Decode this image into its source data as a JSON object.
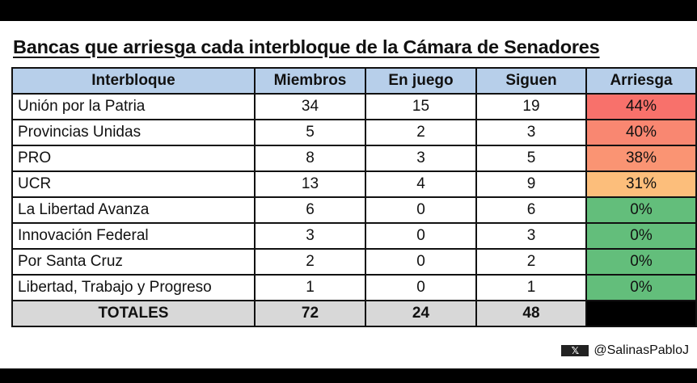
{
  "title": "Bancas que arriesga cada interbloque de la Cámara de Senadores",
  "headers": [
    "Interbloque",
    "Miembros",
    "En juego",
    "Siguen",
    "Arriesga"
  ],
  "rows": [
    {
      "name": "Unión por la Patria",
      "miembros": "34",
      "en_juego": "15",
      "siguen": "19",
      "arriesga": "44%",
      "color": "#f8716b"
    },
    {
      "name": "Provincias Unidas",
      "miembros": "5",
      "en_juego": "2",
      "siguen": "3",
      "arriesga": "40%",
      "color": "#f98771"
    },
    {
      "name": "PRO",
      "miembros": "8",
      "en_juego": "3",
      "siguen": "5",
      "arriesga": "38%",
      "color": "#fa9473"
    },
    {
      "name": "UCR",
      "miembros": "13",
      "en_juego": "4",
      "siguen": "9",
      "arriesga": "31%",
      "color": "#fcbe7b"
    },
    {
      "name": "La Libertad Avanza",
      "miembros": "6",
      "en_juego": "0",
      "siguen": "6",
      "arriesga": "0%",
      "color": "#63be7b"
    },
    {
      "name": "Innovación Federal",
      "miembros": "3",
      "en_juego": "0",
      "siguen": "3",
      "arriesga": "0%",
      "color": "#63be7b"
    },
    {
      "name": "Por Santa Cruz",
      "miembros": "2",
      "en_juego": "0",
      "siguen": "2",
      "arriesga": "0%",
      "color": "#63be7b"
    },
    {
      "name": "Libertad, Trabajo y Progreso",
      "miembros": "1",
      "en_juego": "0",
      "siguen": "1",
      "arriesga": "0%",
      "color": "#63be7b"
    }
  ],
  "totals": {
    "label": "TOTALES",
    "miembros": "72",
    "en_juego": "24",
    "siguen": "48"
  },
  "credit": {
    "icon": "x-logo-icon",
    "handle": "@SalinasPabloJ"
  }
}
